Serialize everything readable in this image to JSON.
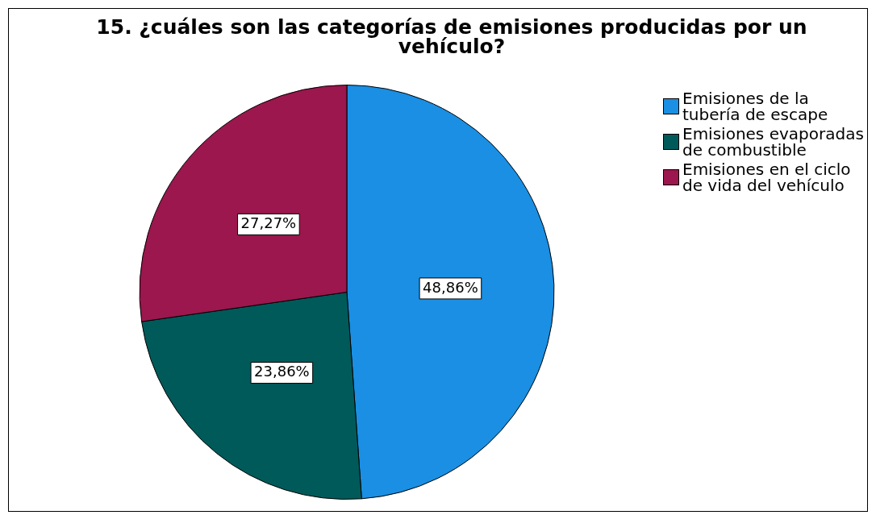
{
  "chart_data": {
    "type": "pie",
    "title": "15. ¿cuáles son las categorías de emisiones producidas por un vehículo?",
    "categories": [
      "Emisiones de la tubería de escape",
      "Emisiones evaporadas de combustible",
      "Emisiones en el ciclo de vida del vehículo"
    ],
    "values": [
      48.86,
      23.86,
      27.27
    ],
    "value_labels": [
      "48,86%",
      "23,86%",
      "27,27%"
    ],
    "colors": [
      "#1a8fe3",
      "#005a5a",
      "#9b174d"
    ],
    "legend": "top right"
  }
}
